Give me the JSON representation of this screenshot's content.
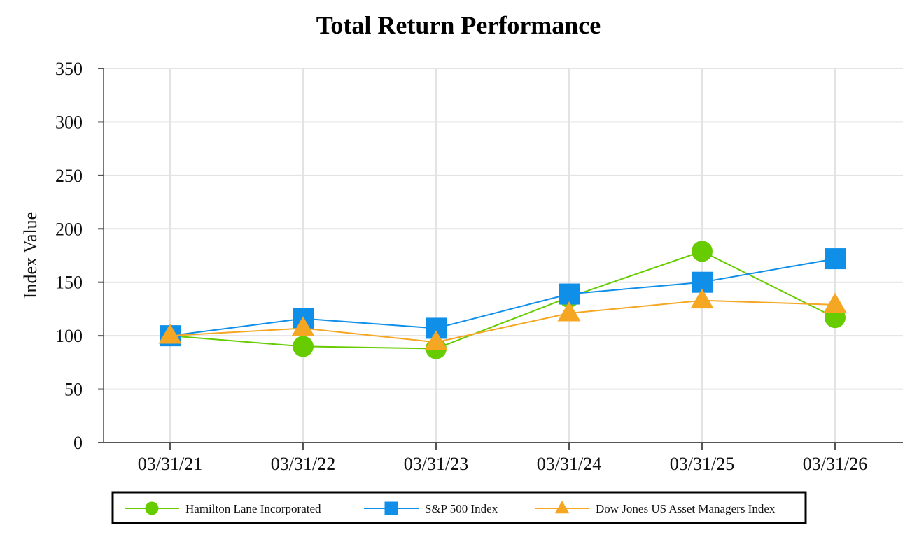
{
  "chart_data": {
    "type": "line",
    "title": "Total Return Performance",
    "ylabel": "Index Value",
    "xlabel": "",
    "categories": [
      "03/31/21",
      "03/31/22",
      "03/31/23",
      "03/31/24",
      "03/31/25",
      "03/31/26"
    ],
    "ylim": [
      0,
      350
    ],
    "yticks": [
      0,
      50,
      100,
      150,
      200,
      250,
      300,
      350
    ],
    "grid": true,
    "legend_position": "bottom",
    "series": [
      {
        "name": "Hamilton Lane Incorporated",
        "color": "#66cc00",
        "marker": "circle",
        "values": [
          100,
          90,
          88,
          136,
          179,
          117
        ]
      },
      {
        "name": "S&P 500 Index",
        "color": "#0f8fe8",
        "marker": "square",
        "values": [
          100,
          116,
          107,
          139,
          150,
          172
        ]
      },
      {
        "name": "Dow Jones US Asset Managers Index",
        "color": "#f5a623",
        "marker": "triangle",
        "values": [
          100,
          107,
          94,
          121,
          133,
          129
        ]
      }
    ]
  }
}
